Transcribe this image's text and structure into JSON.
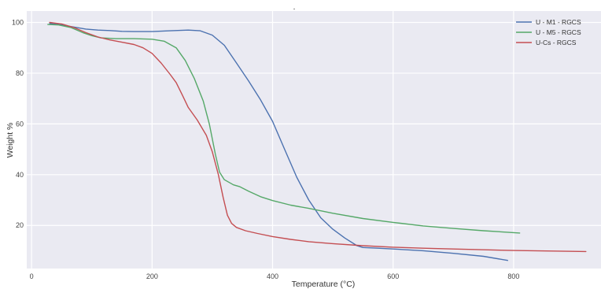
{
  "chart_data": {
    "type": "line",
    "title": ".",
    "xlabel": "Temperature (°C)",
    "ylabel": "Weight %",
    "xlim": [
      -8,
      945
    ],
    "ylim": [
      3,
      104.5
    ],
    "xticks": [
      0,
      200,
      400,
      600,
      800
    ],
    "yticks": [
      20,
      40,
      60,
      80,
      100
    ],
    "grid": true,
    "legend_position": "top-right",
    "background_color": "#eaeaf2",
    "series": [
      {
        "name": "U - M1 - RGCS",
        "color": "#4c72b0",
        "points": [
          [
            30,
            99.6
          ],
          [
            50,
            99.0
          ],
          [
            70,
            98.2
          ],
          [
            90,
            97.4
          ],
          [
            110,
            97.0
          ],
          [
            130,
            96.8
          ],
          [
            150,
            96.5
          ],
          [
            170,
            96.4
          ],
          [
            200,
            96.4
          ],
          [
            230,
            96.7
          ],
          [
            260,
            97.0
          ],
          [
            280,
            96.7
          ],
          [
            300,
            95.0
          ],
          [
            320,
            91.0
          ],
          [
            340,
            84.0
          ],
          [
            360,
            77.0
          ],
          [
            380,
            69.5
          ],
          [
            400,
            61.0
          ],
          [
            420,
            50.0
          ],
          [
            440,
            39.0
          ],
          [
            460,
            30.0
          ],
          [
            480,
            23.0
          ],
          [
            500,
            18.5
          ],
          [
            520,
            15.0
          ],
          [
            540,
            12.0
          ],
          [
            550,
            11.3
          ],
          [
            575,
            11.0
          ],
          [
            600,
            10.7
          ],
          [
            650,
            10.0
          ],
          [
            700,
            9.0
          ],
          [
            750,
            7.8
          ],
          [
            790,
            6.2
          ]
        ]
      },
      {
        "name": "U - M5 - RGCS",
        "color": "#55a868",
        "points": [
          [
            27,
            99.2
          ],
          [
            45,
            99.0
          ],
          [
            65,
            98.0
          ],
          [
            85,
            96.0
          ],
          [
            100,
            94.8
          ],
          [
            115,
            93.9
          ],
          [
            140,
            93.6
          ],
          [
            170,
            93.6
          ],
          [
            200,
            93.4
          ],
          [
            220,
            92.6
          ],
          [
            240,
            90.0
          ],
          [
            255,
            85.0
          ],
          [
            270,
            78.0
          ],
          [
            285,
            69.0
          ],
          [
            295,
            60.0
          ],
          [
            305,
            48.0
          ],
          [
            312,
            41.0
          ],
          [
            320,
            38.0
          ],
          [
            335,
            36.0
          ],
          [
            345,
            35.3
          ],
          [
            360,
            33.5
          ],
          [
            380,
            31.3
          ],
          [
            400,
            29.8
          ],
          [
            430,
            28.0
          ],
          [
            460,
            26.7
          ],
          [
            500,
            24.8
          ],
          [
            550,
            22.7
          ],
          [
            600,
            21.2
          ],
          [
            650,
            19.8
          ],
          [
            700,
            18.8
          ],
          [
            750,
            17.9
          ],
          [
            810,
            17.0
          ]
        ]
      },
      {
        "name": "U-Cs - RGCS",
        "color": "#c44e52",
        "points": [
          [
            30,
            100.0
          ],
          [
            50,
            99.4
          ],
          [
            70,
            98.0
          ],
          [
            90,
            96.0
          ],
          [
            110,
            94.3
          ],
          [
            130,
            93.1
          ],
          [
            150,
            92.2
          ],
          [
            170,
            91.3
          ],
          [
            185,
            90.0
          ],
          [
            200,
            87.8
          ],
          [
            215,
            84.0
          ],
          [
            230,
            79.5
          ],
          [
            240,
            76.3
          ],
          [
            250,
            71.5
          ],
          [
            260,
            66.5
          ],
          [
            275,
            61.5
          ],
          [
            290,
            55.5
          ],
          [
            300,
            49.0
          ],
          [
            310,
            40.0
          ],
          [
            318,
            31.0
          ],
          [
            325,
            24.0
          ],
          [
            332,
            20.8
          ],
          [
            340,
            19.2
          ],
          [
            355,
            17.9
          ],
          [
            375,
            16.8
          ],
          [
            400,
            15.6
          ],
          [
            430,
            14.5
          ],
          [
            460,
            13.6
          ],
          [
            500,
            12.8
          ],
          [
            550,
            12.0
          ],
          [
            600,
            11.4
          ],
          [
            650,
            11.0
          ],
          [
            700,
            10.7
          ],
          [
            800,
            10.1
          ],
          [
            920,
            9.7
          ]
        ]
      }
    ]
  }
}
